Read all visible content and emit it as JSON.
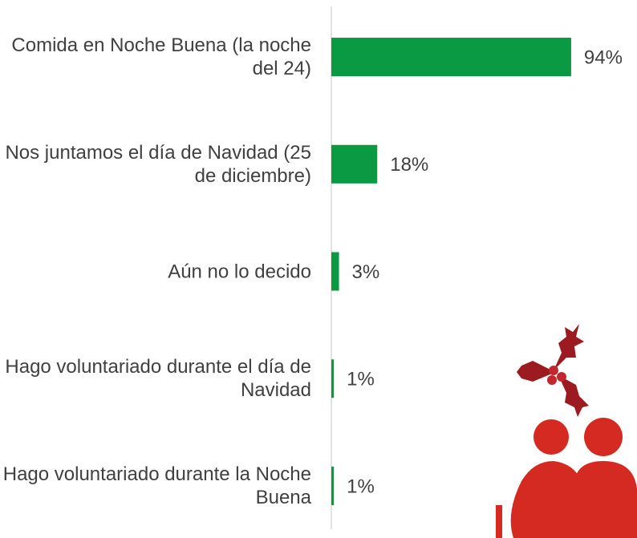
{
  "chart_data": {
    "type": "bar",
    "orientation": "horizontal",
    "categories": [
      "Comida en Noche Buena (la noche del 24)",
      "Nos juntamos el día de Navidad (25 de diciembre)",
      "Aún no lo decido",
      "Hago voluntariado durante el día de Navidad",
      "Hago voluntariado durante la Noche Buena"
    ],
    "values": [
      94,
      18,
      3,
      1,
      1
    ],
    "value_labels": [
      "94%",
      "18%",
      "3%",
      "1%",
      "1%"
    ],
    "color": "#0a9a43",
    "xlim": [
      0,
      100
    ]
  }
}
